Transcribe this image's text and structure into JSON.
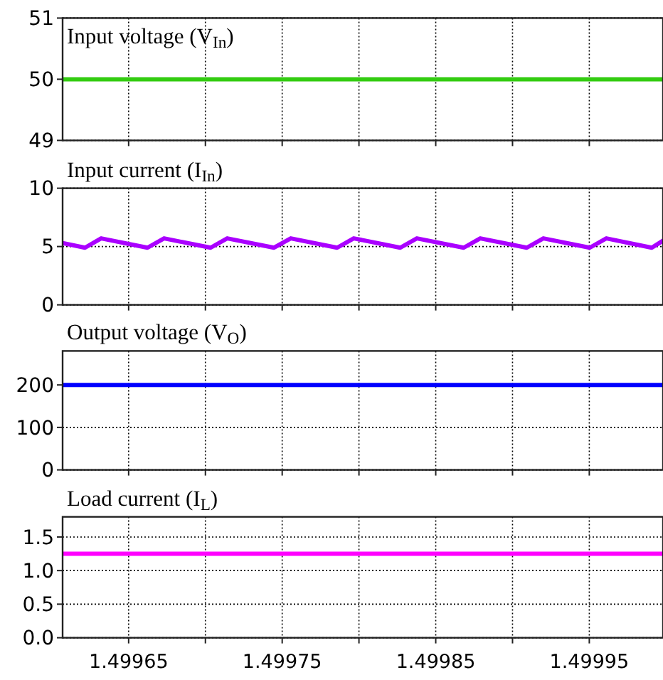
{
  "chart_data": [
    {
      "type": "line",
      "title": "Input voltage (V$_{In}$)",
      "x": [
        1.499607,
        1.499998
      ],
      "series": [
        {
          "color": "#33cc11",
          "values": [
            50,
            50
          ]
        }
      ],
      "xlim": [
        1.499607,
        1.499998
      ],
      "xticks": [
        {
          "value": 1.49965,
          "label": null
        },
        {
          "value": 1.4997,
          "label": null
        },
        {
          "value": 1.49975,
          "label": null
        },
        {
          "value": 1.4998,
          "label": null
        },
        {
          "value": 1.49985,
          "label": null
        },
        {
          "value": 1.4999,
          "label": null
        },
        {
          "value": 1.49995,
          "label": null
        }
      ],
      "ylim": [
        49,
        51
      ],
      "yticks": [
        49,
        50,
        51
      ],
      "grid": true,
      "tick_labels": "y"
    },
    {
      "type": "line",
      "title": "Input current (I$_{In}$)",
      "x": [
        1.499607,
        1.4996216,
        1.4996321,
        1.4996623,
        1.4996731,
        1.4997034,
        1.4997142,
        1.4997447,
        1.4997556,
        1.4997858,
        1.4997966,
        1.4998269,
        1.4998377,
        1.4998682,
        1.499879,
        1.4999093,
        1.4999201,
        1.4999503,
        1.4999611,
        1.4999907,
        1.499998
      ],
      "series": [
        {
          "color": "#aa00ff",
          "values": [
            5.3,
            4.9,
            5.7,
            4.9,
            5.7,
            4.9,
            5.7,
            4.9,
            5.7,
            4.9,
            5.7,
            4.9,
            5.7,
            4.9,
            5.7,
            4.9,
            5.7,
            4.9,
            5.7,
            4.9,
            5.5
          ]
        }
      ],
      "xlim": [
        1.499607,
        1.499998
      ],
      "xticks": [
        {
          "value": 1.49965,
          "label": null
        },
        {
          "value": 1.4997,
          "label": null
        },
        {
          "value": 1.49975,
          "label": null
        },
        {
          "value": 1.4998,
          "label": null
        },
        {
          "value": 1.49985,
          "label": null
        },
        {
          "value": 1.4999,
          "label": null
        },
        {
          "value": 1.49995,
          "label": null
        }
      ],
      "ylim": [
        0,
        10
      ],
      "yticks": [
        0,
        5,
        10
      ],
      "grid": true,
      "tick_labels": "y"
    },
    {
      "type": "line",
      "title": "Output voltage (V$_{O}$)",
      "x": [
        1.499607,
        1.499998
      ],
      "series": [
        {
          "color": "#0000ff",
          "values": [
            200,
            200
          ]
        }
      ],
      "xlim": [
        1.499607,
        1.499998
      ],
      "xticks": [
        {
          "value": 1.49965,
          "label": null
        },
        {
          "value": 1.4997,
          "label": null
        },
        {
          "value": 1.49975,
          "label": null
        },
        {
          "value": 1.4998,
          "label": null
        },
        {
          "value": 1.49985,
          "label": null
        },
        {
          "value": 1.4999,
          "label": null
        },
        {
          "value": 1.49995,
          "label": null
        }
      ],
      "ylim": [
        0,
        280
      ],
      "yticks": [
        0,
        100,
        200
      ],
      "grid": true,
      "tick_labels": "y"
    },
    {
      "type": "line",
      "title": "Load current (I$_{L}$)",
      "x": [
        1.499607,
        1.499998
      ],
      "series": [
        {
          "color": "#ff00ff",
          "values": [
            1.25,
            1.25
          ]
        }
      ],
      "xlim": [
        1.499607,
        1.499998
      ],
      "xticks": [
        1.49965,
        {
          "value": 1.4997,
          "label": null
        },
        1.49975,
        {
          "value": 1.4998,
          "label": null
        },
        1.49985,
        {
          "value": 1.4999,
          "label": null
        },
        1.49995
      ],
      "ylim": [
        0,
        1.8
      ],
      "yticks": [
        {
          "value": 0,
          "label": "0.0"
        },
        0.5,
        {
          "value": 1,
          "label": "1.0"
        },
        1.5
      ],
      "grid": true
    }
  ]
}
